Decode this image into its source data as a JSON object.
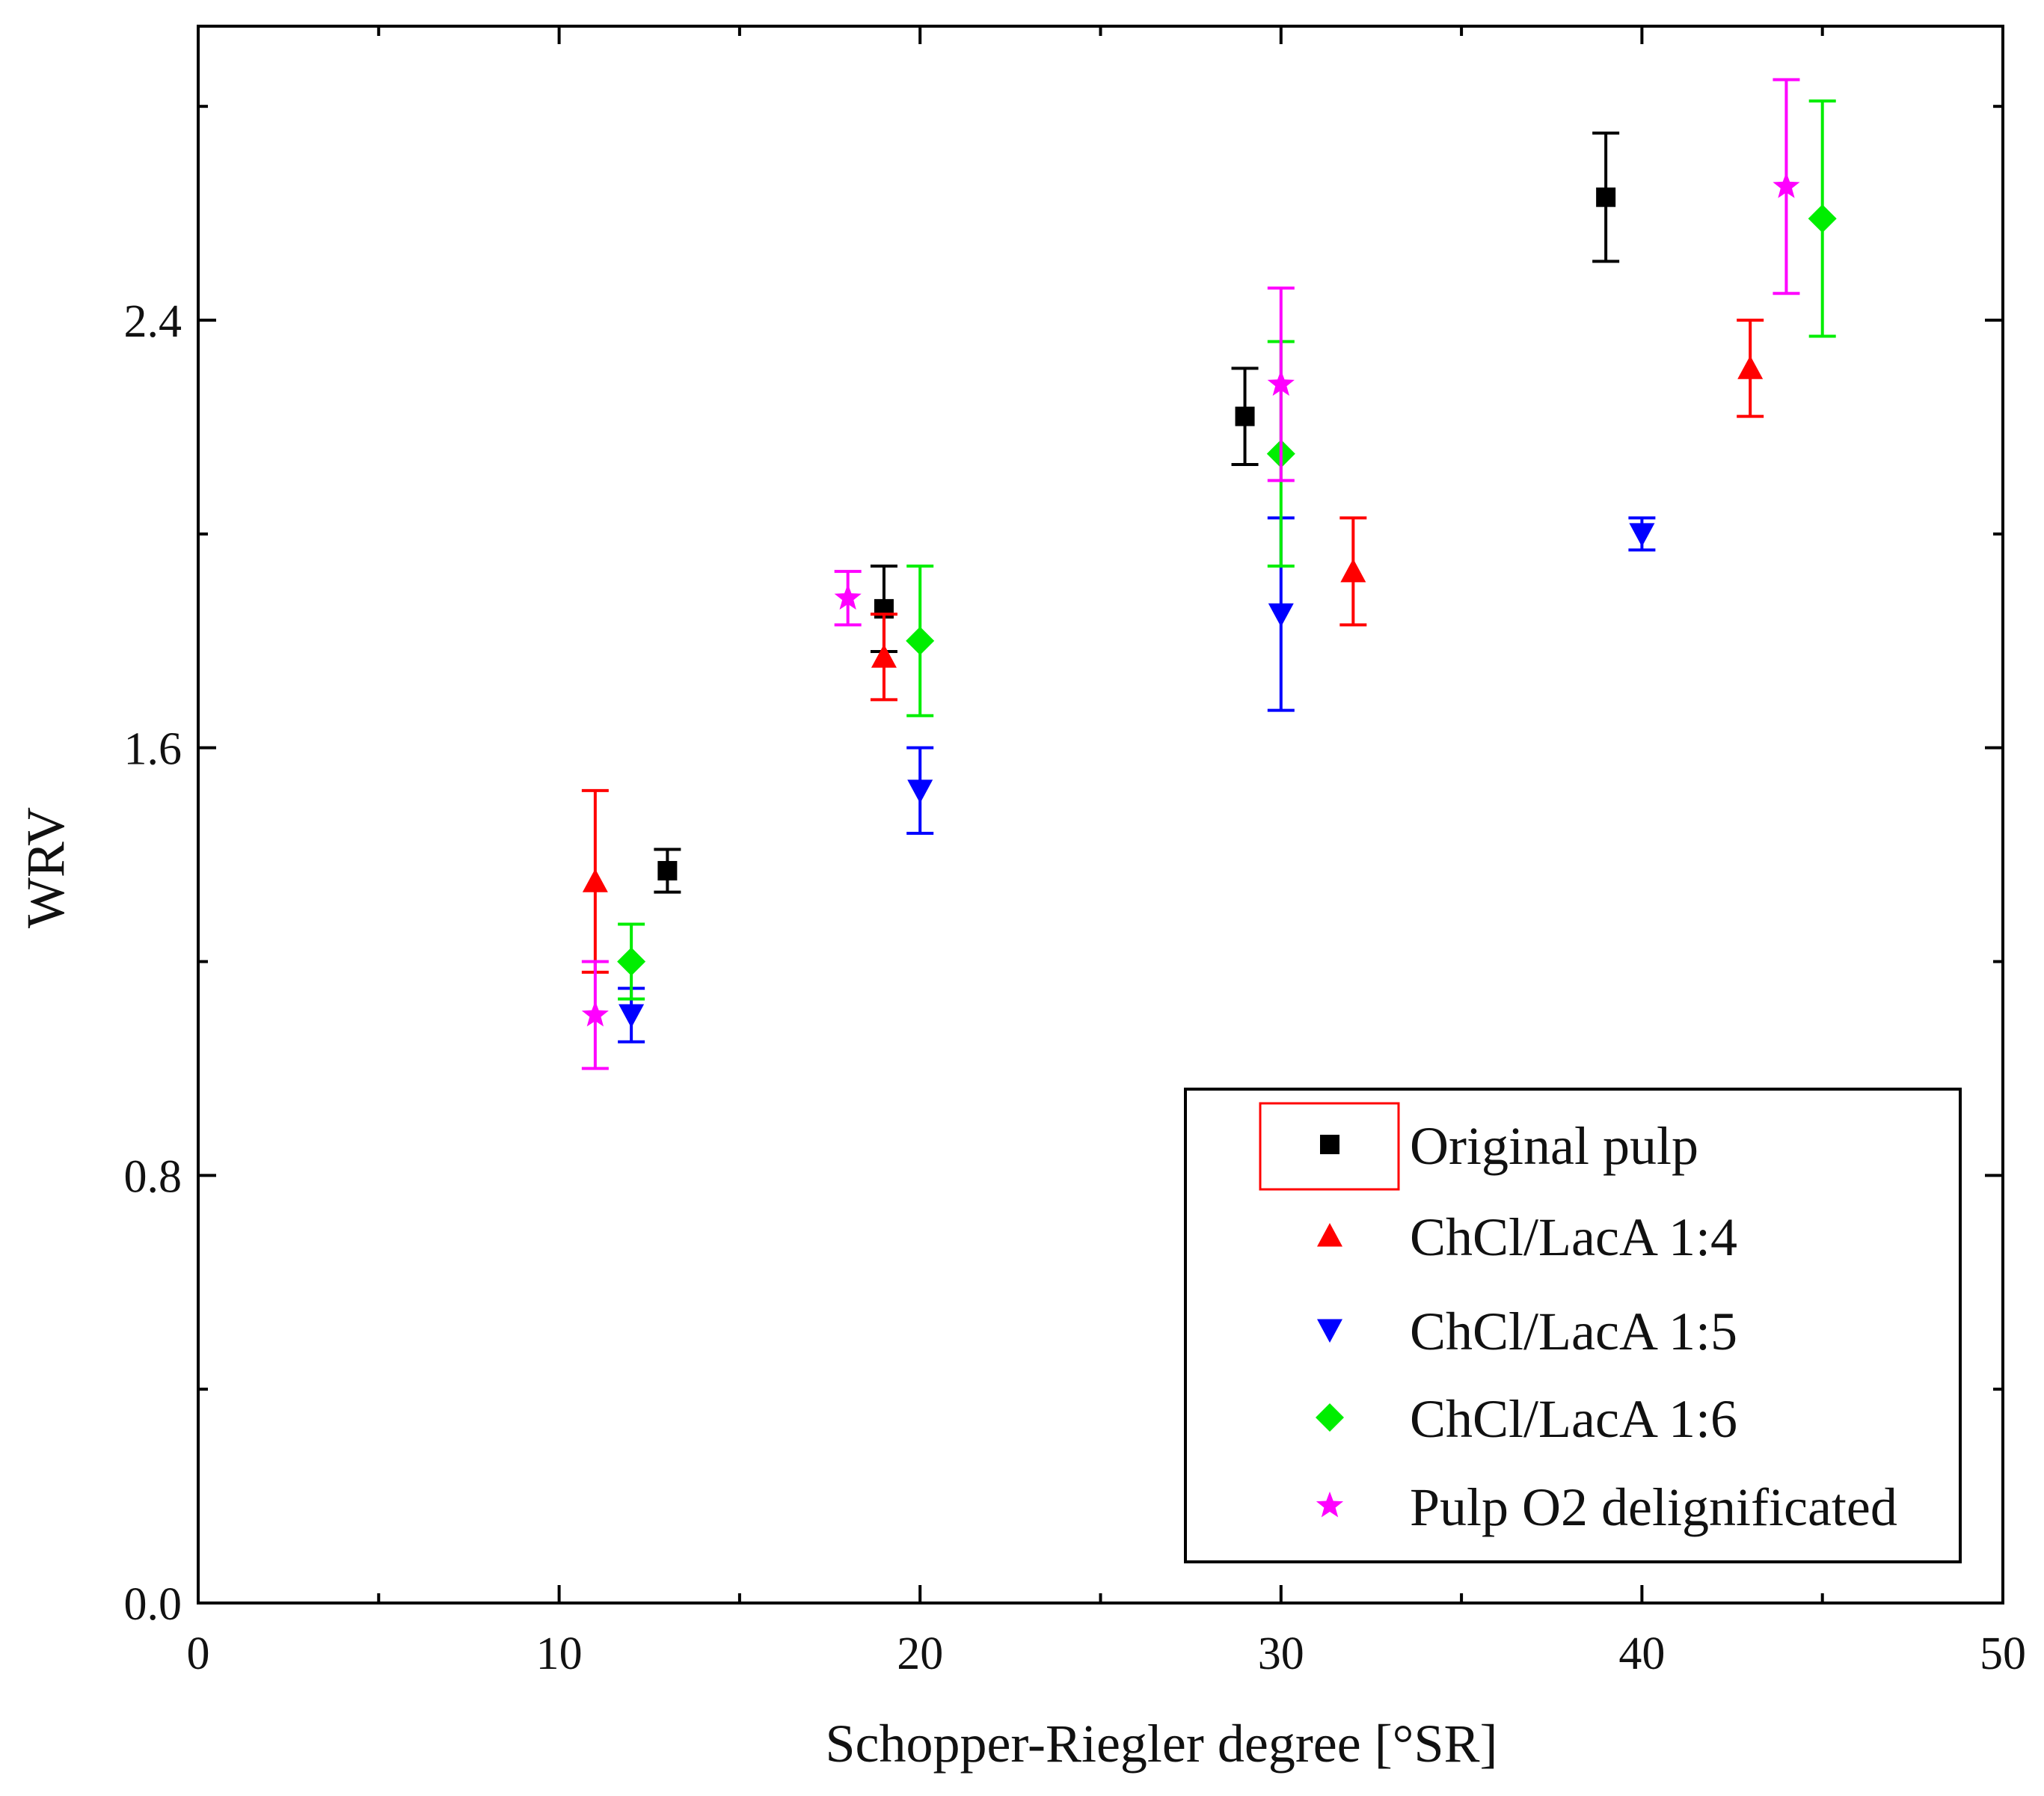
{
  "chart_data": {
    "type": "scatter",
    "title": "",
    "xlabel": "Schopper-Riegler degree [°SR]",
    "ylabel": "WRV",
    "xlim": [
      0,
      50
    ],
    "ylim": [
      0,
      2.95
    ],
    "xticks": [
      0,
      10,
      20,
      30,
      40,
      50
    ],
    "xtick_labels": [
      "0",
      "10",
      "20",
      "30",
      "40",
      "50"
    ],
    "yticks": [
      0.0,
      0.8,
      1.6,
      2.4
    ],
    "ytick_labels": [
      "0.0",
      "0.8",
      "1.6",
      "2.4"
    ],
    "grid": false,
    "legend_position": "bottom-right",
    "series": [
      {
        "name": "Original pulp",
        "marker": "square",
        "color": "#000000",
        "points": [
          {
            "x": 13,
            "y": 1.37,
            "err": 0.04
          },
          {
            "x": 19,
            "y": 1.86,
            "err": 0.08
          },
          {
            "x": 29,
            "y": 2.22,
            "err": 0.09
          },
          {
            "x": 39,
            "y": 2.63,
            "err": 0.12
          }
        ]
      },
      {
        "name": "ChCl/LacA 1:4",
        "marker": "triangle-up",
        "color": "#ff0000",
        "points": [
          {
            "x": 11,
            "y": 1.35,
            "err": 0.17
          },
          {
            "x": 19,
            "y": 1.77,
            "err": 0.08
          },
          {
            "x": 32,
            "y": 1.93,
            "err": 0.1
          },
          {
            "x": 43,
            "y": 2.31,
            "err": 0.09
          }
        ]
      },
      {
        "name": "ChCl/LacA 1:5",
        "marker": "triangle-down",
        "color": "#0000ff",
        "points": [
          {
            "x": 12,
            "y": 1.1,
            "err": 0.05
          },
          {
            "x": 20,
            "y": 1.52,
            "err": 0.08
          },
          {
            "x": 30,
            "y": 1.85,
            "err": 0.18
          },
          {
            "x": 40,
            "y": 2.0,
            "err": 0.03
          }
        ]
      },
      {
        "name": "ChCl/LacA 1:6",
        "marker": "diamond",
        "color": "#00ee00",
        "points": [
          {
            "x": 12,
            "y": 1.2,
            "err": 0.07
          },
          {
            "x": 20,
            "y": 1.8,
            "err": 0.14
          },
          {
            "x": 30,
            "y": 2.15,
            "err": 0.21
          },
          {
            "x": 45,
            "y": 2.59,
            "err": 0.22
          }
        ]
      },
      {
        "name": "Pulp O2 delignificated",
        "marker": "star",
        "color": "#ff00ff",
        "points": [
          {
            "x": 11,
            "y": 1.1,
            "err": 0.1
          },
          {
            "x": 18,
            "y": 1.88,
            "err": 0.05
          },
          {
            "x": 30,
            "y": 2.28,
            "err": 0.18
          },
          {
            "x": 44,
            "y": 2.65,
            "err": 0.2
          }
        ]
      }
    ]
  }
}
